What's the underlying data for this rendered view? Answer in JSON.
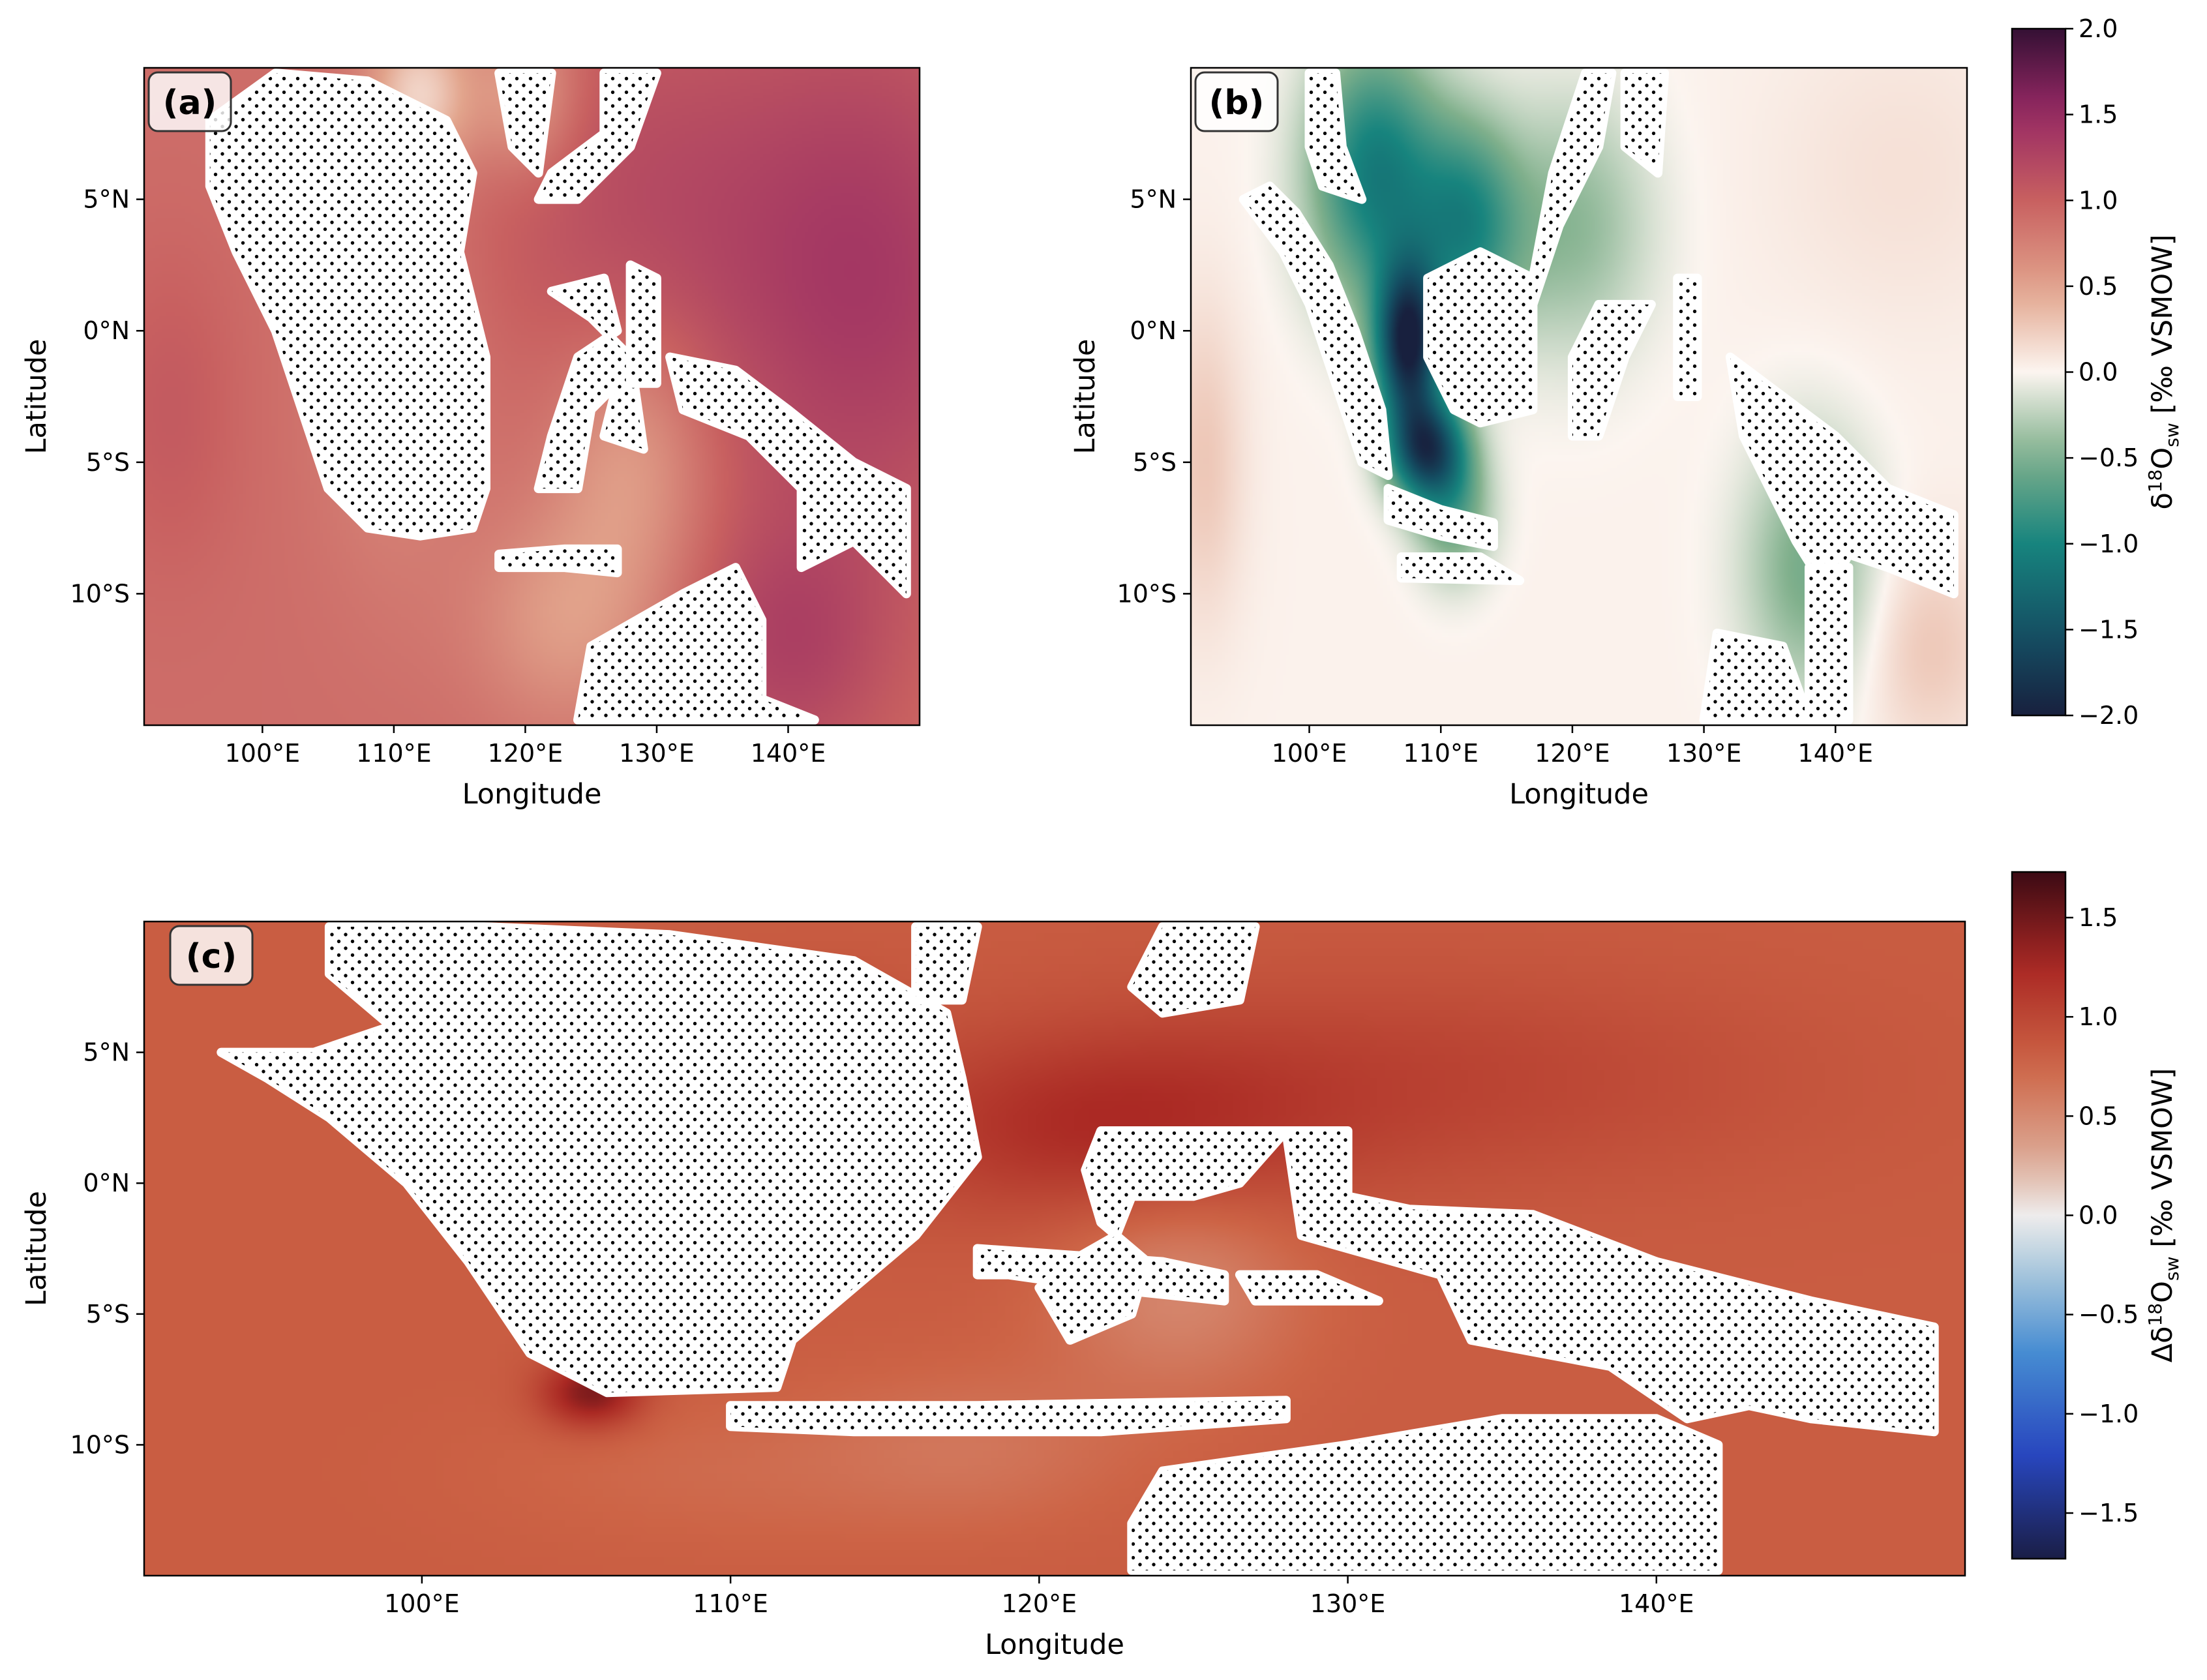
{
  "colors": {
    "land_fill": "#ffffff",
    "land_dots": "#000000",
    "frame": "#000000"
  },
  "chart_data": [
    {
      "type": "heatmap",
      "panel_label": "(a)",
      "xlabel": "Longitude",
      "ylabel": "Latitude",
      "xlim": [
        91,
        150
      ],
      "ylim": [
        -15,
        10
      ],
      "x_ticks": [
        100,
        110,
        120,
        130,
        140
      ],
      "x_tick_labels": [
        "100°E",
        "110°E",
        "120°E",
        "130°E",
        "140°E"
      ],
      "y_ticks": [
        5,
        0,
        -5,
        -10
      ],
      "y_tick_labels": [
        "5°N",
        "0°N",
        "5°S",
        "10°S"
      ],
      "colorbar": "shared-ab",
      "colormap": "curl",
      "field": {
        "base": 0.9,
        "blobs": [
          [
            146,
            2,
            12,
            10,
            0.45
          ],
          [
            140,
            -12,
            8,
            5,
            0.35
          ],
          [
            128,
            5,
            12,
            8,
            0.25
          ],
          [
            112,
            9,
            4,
            3,
            -0.7
          ],
          [
            120,
            9,
            4,
            3,
            -0.45
          ],
          [
            128,
            -5,
            6,
            5,
            -0.4
          ],
          [
            123,
            -11,
            7,
            4,
            -0.35
          ],
          [
            110,
            -2,
            6,
            8,
            -0.2
          ],
          [
            93,
            -3,
            5,
            6,
            0.15
          ]
        ]
      },
      "land": [
        [
          [
            96,
            8
          ],
          [
            101,
            9.8
          ],
          [
            108,
            9.5
          ],
          [
            114,
            8
          ],
          [
            116,
            6
          ],
          [
            115,
            3
          ],
          [
            117,
            -1
          ],
          [
            117,
            -6
          ],
          [
            116,
            -7.5
          ],
          [
            112,
            -7.8
          ],
          [
            108,
            -7.5
          ],
          [
            105,
            -6
          ],
          [
            103,
            -3
          ],
          [
            101,
            0
          ],
          [
            98,
            3
          ],
          [
            96,
            5.5
          ]
        ],
        [
          [
            122,
            6
          ],
          [
            126,
            7.5
          ],
          [
            126,
            9.8
          ],
          [
            130,
            9.8
          ],
          [
            128,
            7
          ],
          [
            124,
            5
          ],
          [
            121,
            5
          ]
        ],
        [
          [
            118,
            9.8
          ],
          [
            122,
            9.8
          ],
          [
            121,
            6
          ],
          [
            119,
            7
          ]
        ],
        [
          [
            122,
            1.5
          ],
          [
            126,
            2
          ],
          [
            127,
            0
          ],
          [
            124,
            -1
          ],
          [
            122,
            -4
          ],
          [
            121,
            -6
          ],
          [
            124,
            -6
          ],
          [
            125,
            -3
          ],
          [
            127,
            -2
          ],
          [
            126,
            -4
          ],
          [
            129,
            -4.5
          ],
          [
            128,
            -1
          ],
          [
            125,
            0.5
          ]
        ],
        [
          [
            128,
            2.5
          ],
          [
            130,
            2
          ],
          [
            130,
            -2
          ],
          [
            128,
            -2
          ]
        ],
        [
          [
            131,
            -1
          ],
          [
            136,
            -1.5
          ],
          [
            140,
            -3
          ],
          [
            145,
            -5
          ],
          [
            149,
            -6
          ],
          [
            149,
            -10
          ],
          [
            145,
            -8
          ],
          [
            141,
            -9
          ],
          [
            141,
            -6
          ],
          [
            137,
            -4
          ],
          [
            132,
            -3
          ]
        ],
        [
          [
            125,
            -12
          ],
          [
            132,
            -10
          ],
          [
            136,
            -9
          ],
          [
            138,
            -11
          ],
          [
            138,
            -14
          ],
          [
            142,
            -14.8
          ],
          [
            124,
            -14.8
          ]
        ],
        [
          [
            118,
            -8.5
          ],
          [
            123,
            -8.3
          ],
          [
            127,
            -8.3
          ],
          [
            127,
            -9.2
          ],
          [
            123,
            -9
          ],
          [
            118,
            -9
          ]
        ]
      ]
    },
    {
      "type": "heatmap",
      "panel_label": "(b)",
      "xlabel": "Longitude",
      "ylabel": "Latitude",
      "xlim": [
        91,
        150
      ],
      "ylim": [
        -15,
        10
      ],
      "x_ticks": [
        100,
        110,
        120,
        130,
        140
      ],
      "x_tick_labels": [
        "100°E",
        "110°E",
        "120°E",
        "130°E",
        "140°E"
      ],
      "y_ticks": [
        5,
        0,
        -5,
        -10
      ],
      "y_tick_labels": [
        "5°N",
        "0°N",
        "5°S",
        "10°S"
      ],
      "colorbar": "shared-ab",
      "colormap": "curl",
      "field": {
        "base": 0.02,
        "blobs": [
          [
            107.5,
            -0.5,
            2.5,
            3,
            -1.9
          ],
          [
            109,
            -4.5,
            3,
            2,
            -1.6
          ],
          [
            105,
            6,
            5,
            5,
            -1.1
          ],
          [
            112,
            4,
            4,
            4,
            -0.9
          ],
          [
            120,
            4,
            6,
            5,
            -0.45
          ],
          [
            138,
            -9,
            5,
            5,
            -0.55
          ],
          [
            111,
            -7,
            3,
            2.5,
            -0.6
          ],
          [
            92,
            -5,
            3,
            6,
            0.25
          ],
          [
            147,
            -12,
            5,
            4,
            0.25
          ],
          [
            145,
            6,
            10,
            6,
            0.1
          ]
        ]
      },
      "land": [
        [
          [
            95,
            5
          ],
          [
            98,
            3
          ],
          [
            100,
            1
          ],
          [
            102,
            -2
          ],
          [
            104,
            -5
          ],
          [
            106,
            -5.5
          ],
          [
            105.5,
            -3
          ],
          [
            103.5,
            0
          ],
          [
            101.5,
            2.5
          ],
          [
            99,
            4.5
          ],
          [
            97,
            5.5
          ]
        ],
        [
          [
            100,
            9.8
          ],
          [
            102,
            9.8
          ],
          [
            102.5,
            7
          ],
          [
            104,
            5
          ],
          [
            101,
            5.5
          ],
          [
            100,
            7
          ]
        ],
        [
          [
            109,
            2
          ],
          [
            113,
            3
          ],
          [
            117,
            2
          ],
          [
            118.5,
            6
          ],
          [
            121,
            9.8
          ],
          [
            123,
            9.8
          ],
          [
            122,
            7
          ],
          [
            119,
            4
          ],
          [
            117,
            1
          ],
          [
            117,
            -3
          ],
          [
            113,
            -3.5
          ],
          [
            111,
            -3
          ],
          [
            109,
            -1
          ]
        ],
        [
          [
            106,
            -6
          ],
          [
            110,
            -6.8
          ],
          [
            114,
            -7.3
          ],
          [
            114,
            -8.2
          ],
          [
            110,
            -7.8
          ],
          [
            106,
            -7.2
          ]
        ],
        [
          [
            124,
            9.8
          ],
          [
            127,
            9.8
          ],
          [
            126.5,
            6
          ],
          [
            124,
            7
          ]
        ],
        [
          [
            122,
            1
          ],
          [
            126,
            1
          ],
          [
            124,
            -1
          ],
          [
            122,
            -4
          ],
          [
            120,
            -4
          ],
          [
            120,
            -1
          ]
        ],
        [
          [
            128,
            2
          ],
          [
            129.5,
            2
          ],
          [
            129.5,
            -2.5
          ],
          [
            128,
            -2.5
          ]
        ],
        [
          [
            132,
            -1
          ],
          [
            136,
            -2.5
          ],
          [
            140,
            -4
          ],
          [
            144,
            -6
          ],
          [
            149,
            -7
          ],
          [
            149,
            -10
          ],
          [
            144,
            -9
          ],
          [
            141,
            -8.5
          ],
          [
            139.5,
            -10
          ],
          [
            137,
            -8
          ],
          [
            133,
            -4
          ]
        ],
        [
          [
            131,
            -11.5
          ],
          [
            136,
            -12
          ],
          [
            138,
            -14.8
          ],
          [
            130,
            -14.8
          ]
        ],
        [
          [
            138,
            -9
          ],
          [
            141,
            -9
          ],
          [
            141,
            -14.8
          ],
          [
            138,
            -14.8
          ]
        ],
        [
          [
            107,
            -8.6
          ],
          [
            113,
            -8.6
          ],
          [
            116,
            -9.5
          ],
          [
            107,
            -9.4
          ]
        ]
      ]
    },
    {
      "type": "heatmap",
      "panel_label": "(c)",
      "xlabel": "Longitude",
      "ylabel": "Latitude",
      "xlim": [
        91,
        150
      ],
      "ylim": [
        -15,
        10
      ],
      "x_ticks": [
        100,
        110,
        120,
        130,
        140
      ],
      "x_tick_labels": [
        "100°E",
        "110°E",
        "120°E",
        "130°E",
        "140°E"
      ],
      "y_ticks": [
        5,
        0,
        -5,
        -10
      ],
      "y_tick_labels": [
        "5°N",
        "0°N",
        "5°S",
        "10°S"
      ],
      "colorbar": "delta",
      "colormap": "balance",
      "field": {
        "base": 0.82,
        "blobs": [
          [
            105.5,
            -8,
            1.6,
            1.3,
            0.65
          ],
          [
            122,
            2,
            7,
            3.5,
            0.35
          ],
          [
            132,
            4,
            12,
            4,
            0.2
          ],
          [
            124.5,
            -4,
            4,
            4,
            -0.3
          ],
          [
            118,
            -10,
            5,
            3,
            -0.15
          ],
          [
            110,
            -11,
            8,
            3,
            -0.1
          ],
          [
            112.5,
            6,
            2.5,
            2,
            0.2
          ]
        ]
      },
      "land": [
        [
          [
            97,
            9.8
          ],
          [
            102,
            9.8
          ],
          [
            108,
            9.5
          ],
          [
            114,
            8.5
          ],
          [
            117,
            6.5
          ],
          [
            117.5,
            4
          ],
          [
            118,
            1
          ],
          [
            116,
            -2
          ],
          [
            114,
            -4
          ],
          [
            112,
            -6
          ],
          [
            111.5,
            -7.8
          ],
          [
            106,
            -8
          ],
          [
            103.5,
            -6.5
          ],
          [
            101.5,
            -3
          ],
          [
            99.5,
            0
          ],
          [
            97,
            2.5
          ],
          [
            95,
            4
          ],
          [
            93.5,
            5
          ],
          [
            96.5,
            5
          ],
          [
            99,
            6
          ],
          [
            97,
            8
          ]
        ],
        [
          [
            116,
            9.8
          ],
          [
            118,
            9.8
          ],
          [
            117.5,
            7
          ],
          [
            116,
            7
          ]
        ],
        [
          [
            124,
            9.8
          ],
          [
            127,
            9.8
          ],
          [
            126.5,
            7
          ],
          [
            124,
            6.5
          ],
          [
            123,
            7.5
          ]
        ],
        [
          [
            118,
            -2.5
          ],
          [
            124,
            -3
          ],
          [
            126,
            -3.5
          ],
          [
            126,
            -4.5
          ],
          [
            122,
            -4
          ],
          [
            119,
            -3.5
          ],
          [
            118,
            -3.5
          ]
        ],
        [
          [
            122,
            2
          ],
          [
            128,
            2
          ],
          [
            126.5,
            0
          ],
          [
            125,
            -0.5
          ],
          [
            123,
            -0.5
          ],
          [
            122.5,
            -2
          ],
          [
            121,
            -3
          ],
          [
            120,
            -4
          ],
          [
            121,
            -6
          ],
          [
            123,
            -5
          ],
          [
            123.5,
            -3
          ],
          [
            122,
            -1.5
          ],
          [
            121.5,
            0.5
          ]
        ],
        [
          [
            126.5,
            -3.5
          ],
          [
            129,
            -3.5
          ],
          [
            131,
            -4.5
          ],
          [
            127,
            -4.5
          ]
        ],
        [
          [
            128,
            2
          ],
          [
            130,
            2
          ],
          [
            130,
            -0.5
          ],
          [
            132,
            -1
          ],
          [
            136,
            -1.2
          ],
          [
            140,
            -3
          ],
          [
            145,
            -4.5
          ],
          [
            149,
            -5.5
          ],
          [
            149,
            -9.5
          ],
          [
            145,
            -9
          ],
          [
            143,
            -8.5
          ],
          [
            141,
            -9
          ],
          [
            138.5,
            -7
          ],
          [
            134,
            -6
          ],
          [
            133,
            -3.5
          ],
          [
            130,
            -2.5
          ],
          [
            128.5,
            -2
          ]
        ],
        [
          [
            124,
            -11
          ],
          [
            130,
            -10
          ],
          [
            135,
            -9
          ],
          [
            140,
            -9
          ],
          [
            142,
            -10
          ],
          [
            142,
            -14.8
          ],
          [
            123,
            -14.8
          ],
          [
            123,
            -13
          ]
        ],
        [
          [
            110,
            -8.5
          ],
          [
            118,
            -8.5
          ],
          [
            128,
            -8.3
          ],
          [
            128,
            -9
          ],
          [
            122,
            -9.5
          ],
          [
            114,
            -9.5
          ],
          [
            110,
            -9.3
          ]
        ]
      ]
    }
  ],
  "colorbars": [
    {
      "id": "shared-ab",
      "label": "δ18Osw [‰ VSMOW]",
      "label_main": "δ",
      "label_sup": "18",
      "label_sub": "sw",
      "label_rest": " [‰ VSMOW]",
      "colormap": "curl",
      "vmin": -2.0,
      "vmax": 2.0,
      "ticks": [
        2.0,
        1.5,
        1.0,
        0.5,
        0.0,
        -0.5,
        -1.0,
        -1.5,
        -2.0
      ],
      "tick_labels": [
        "2.0",
        "1.5",
        "1.0",
        "0.5",
        "0.0",
        "−0.5",
        "−1.0",
        "−1.5",
        "−2.0"
      ]
    },
    {
      "id": "delta",
      "label": "Δδ18Osw [‰ VSMOW]",
      "label_main": "Δδ",
      "label_sup": "18",
      "label_sub": "sw",
      "label_rest": " [‰ VSMOW]",
      "colormap": "balance",
      "vmin": -1.73,
      "vmax": 1.73,
      "ticks": [
        1.5,
        1.0,
        0.5,
        0.0,
        -0.5,
        -1.0,
        -1.5
      ],
      "tick_labels": [
        "1.5",
        "1.0",
        "0.5",
        "0.0",
        "−0.5",
        "−1.0",
        "−1.5"
      ]
    }
  ]
}
